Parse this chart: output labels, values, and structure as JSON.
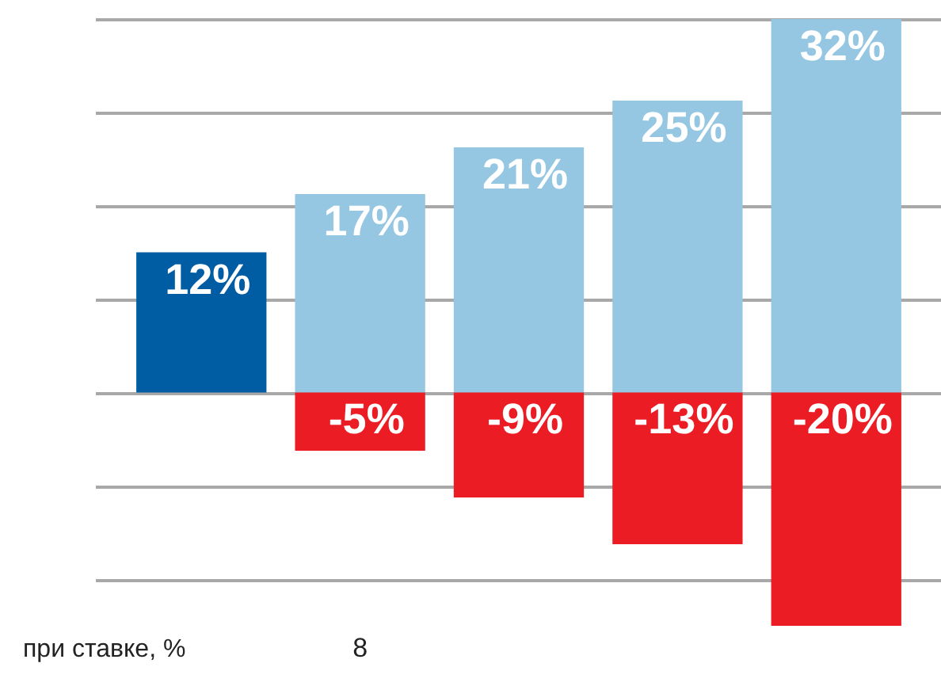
{
  "chart_data": {
    "type": "bar",
    "xlabel": "при ставке, %",
    "categories": [
      null,
      "8",
      null,
      null,
      null
    ],
    "stacked": true,
    "grid": "y",
    "tick_labels": "x",
    "ylim": [
      -20,
      32
    ],
    "yticks": [
      {
        "value": -16,
        "label": null
      },
      {
        "value": -8,
        "label": null
      },
      {
        "value": 0,
        "label": null
      },
      {
        "value": 8,
        "label": null
      },
      {
        "value": 16,
        "label": null
      },
      {
        "value": 24,
        "label": null
      },
      {
        "value": 32,
        "label": null
      }
    ],
    "series": [
      {
        "color": "#005ca3",
        "values": [
          12,
          null,
          null,
          null,
          null
        ],
        "value_labels": [
          "12%",
          null,
          null,
          null,
          null
        ]
      },
      {
        "color": "#95c6e2",
        "values": [
          null,
          17,
          21,
          25,
          32
        ],
        "value_labels": [
          null,
          "17%",
          "21%",
          "25%",
          "32%"
        ]
      },
      {
        "color": "#ec1c24",
        "values": [
          null,
          -5,
          -9,
          -13,
          -20
        ],
        "value_labels": [
          null,
          "-5%",
          "-9%",
          "-13%",
          "-20%"
        ]
      }
    ]
  }
}
